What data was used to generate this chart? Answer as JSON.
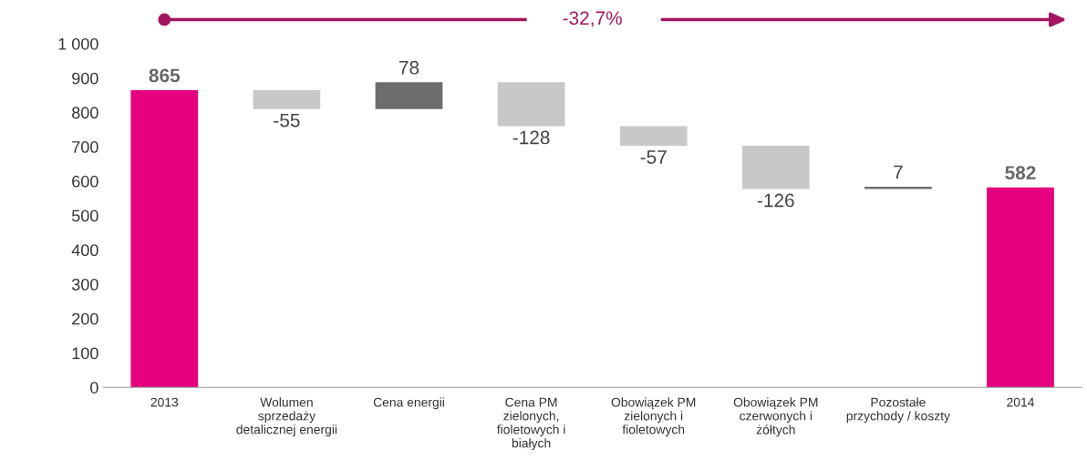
{
  "chart_data": {
    "type": "bar",
    "categories": [
      "2013",
      "Wolumen\nsprzedaży\ndetalicznej energii",
      "Cena energii",
      "Cena PM\nzielonych,\nfioletowych i\nbiałych",
      "Obowiązek PM\nzielonych i\nfioletowych",
      "Obowiązek PM\nczerwonych i\nżółtych",
      "Pozostałe\nprzychody / koszty",
      "2014"
    ],
    "values": [
      865,
      -55,
      78,
      -128,
      -57,
      -126,
      7,
      582
    ],
    "base": [
      0,
      865,
      810,
      888,
      760,
      703,
      577,
      0
    ],
    "colors": [
      "#e6007e",
      "#c8c8c8",
      "#6d6d6d",
      "#c8c8c8",
      "#c8c8c8",
      "#c8c8c8",
      "#6d6d6d",
      "#e6007e"
    ],
    "data_labels": true,
    "ylim": [
      0,
      1000
    ],
    "yticks": [
      0,
      100,
      200,
      300,
      400,
      500,
      600,
      700,
      800,
      900,
      {
        "value": 1000,
        "label": "1 000"
      }
    ],
    "annotations": [
      "-32,7%"
    ],
    "grid": false,
    "legend": false
  }
}
